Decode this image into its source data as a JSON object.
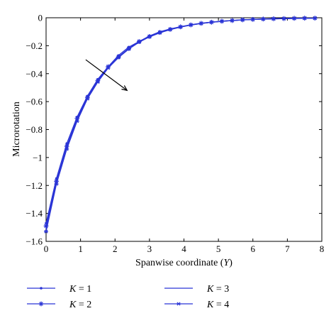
{
  "chart_data": {
    "type": "line",
    "xlabel": "Spanwise coordinate (Y)",
    "xlabel_prefix": "Spanwise coordinate (",
    "xlabel_var": "Y",
    "xlabel_suffix": ")",
    "ylabel": "Microrotation",
    "xlim": [
      0,
      8
    ],
    "ylim": [
      -1.6,
      0
    ],
    "xticks": [
      0,
      1,
      2,
      3,
      4,
      5,
      6,
      7,
      8
    ],
    "xtick_labels": [
      "0",
      "1",
      "2",
      "3",
      "4",
      "5",
      "6",
      "7",
      "8"
    ],
    "yticks": [
      0,
      -0.2,
      -0.4,
      -0.6,
      -0.8,
      -1,
      -1.2,
      -1.4,
      -1.6
    ],
    "ytick_labels": [
      "0",
      "−0.2",
      "−0.4",
      "−0.6",
      "−0.8",
      "−1",
      "−1.2",
      "−1.4",
      "−1.6"
    ],
    "grid": false,
    "legend_placement": "below",
    "line_color": "#2b35d6",
    "annotation": {
      "type": "arrow",
      "from": [
        1.15,
        -0.3
      ],
      "to": [
        2.35,
        -0.52
      ],
      "meaning": "increasing K"
    },
    "x": [
      0,
      0.3,
      0.6,
      0.9,
      1.2,
      1.5,
      1.8,
      2.1,
      2.4,
      2.7,
      3.0,
      3.3,
      3.6,
      3.9,
      4.2,
      4.5,
      4.8,
      5.1,
      5.4,
      5.7,
      6.0,
      6.3,
      6.6,
      6.9,
      7.2,
      7.5,
      7.8
    ],
    "series": [
      {
        "name": "K = 1",
        "label_var": "K",
        "label_value": "= 1",
        "marker": "dot",
        "values": [
          -1.47,
          -1.15,
          -0.9,
          -0.71,
          -0.56,
          -0.44,
          -0.35,
          -0.27,
          -0.21,
          -0.17,
          -0.13,
          -0.1,
          -0.08,
          -0.064,
          -0.05,
          -0.039,
          -0.031,
          -0.024,
          -0.019,
          -0.015,
          -0.012,
          -0.009,
          -0.007,
          -0.006,
          -0.004,
          -0.003,
          -0.003
        ]
      },
      {
        "name": "K = 2",
        "label_var": "K",
        "label_value": "= 2",
        "marker": "star",
        "values": [
          -1.49,
          -1.17,
          -0.92,
          -0.72,
          -0.57,
          -0.45,
          -0.35,
          -0.28,
          -0.22,
          -0.17,
          -0.134,
          -0.105,
          -0.083,
          -0.065,
          -0.051,
          -0.04,
          -0.032,
          -0.025,
          -0.02,
          -0.015,
          -0.012,
          -0.009,
          -0.007,
          -0.006,
          -0.004,
          -0.003,
          -0.003
        ]
      },
      {
        "name": "K = 3",
        "label_var": "K",
        "label_value": "= 3",
        "marker": "none",
        "values": [
          -1.51,
          -1.18,
          -0.93,
          -0.73,
          -0.57,
          -0.45,
          -0.36,
          -0.28,
          -0.22,
          -0.172,
          -0.135,
          -0.106,
          -0.084,
          -0.066,
          -0.052,
          -0.041,
          -0.032,
          -0.025,
          -0.02,
          -0.016,
          -0.012,
          -0.01,
          -0.008,
          -0.006,
          -0.005,
          -0.004,
          -0.003
        ]
      },
      {
        "name": "K = 4",
        "label_var": "K",
        "label_value": "= 4",
        "marker": "asterisk",
        "values": [
          -1.53,
          -1.19,
          -0.94,
          -0.74,
          -0.58,
          -0.46,
          -0.36,
          -0.285,
          -0.224,
          -0.175,
          -0.137,
          -0.108,
          -0.085,
          -0.067,
          -0.052,
          -0.041,
          -0.032,
          -0.026,
          -0.02,
          -0.016,
          -0.012,
          -0.01,
          -0.008,
          -0.006,
          -0.005,
          -0.004,
          -0.003
        ]
      }
    ]
  }
}
